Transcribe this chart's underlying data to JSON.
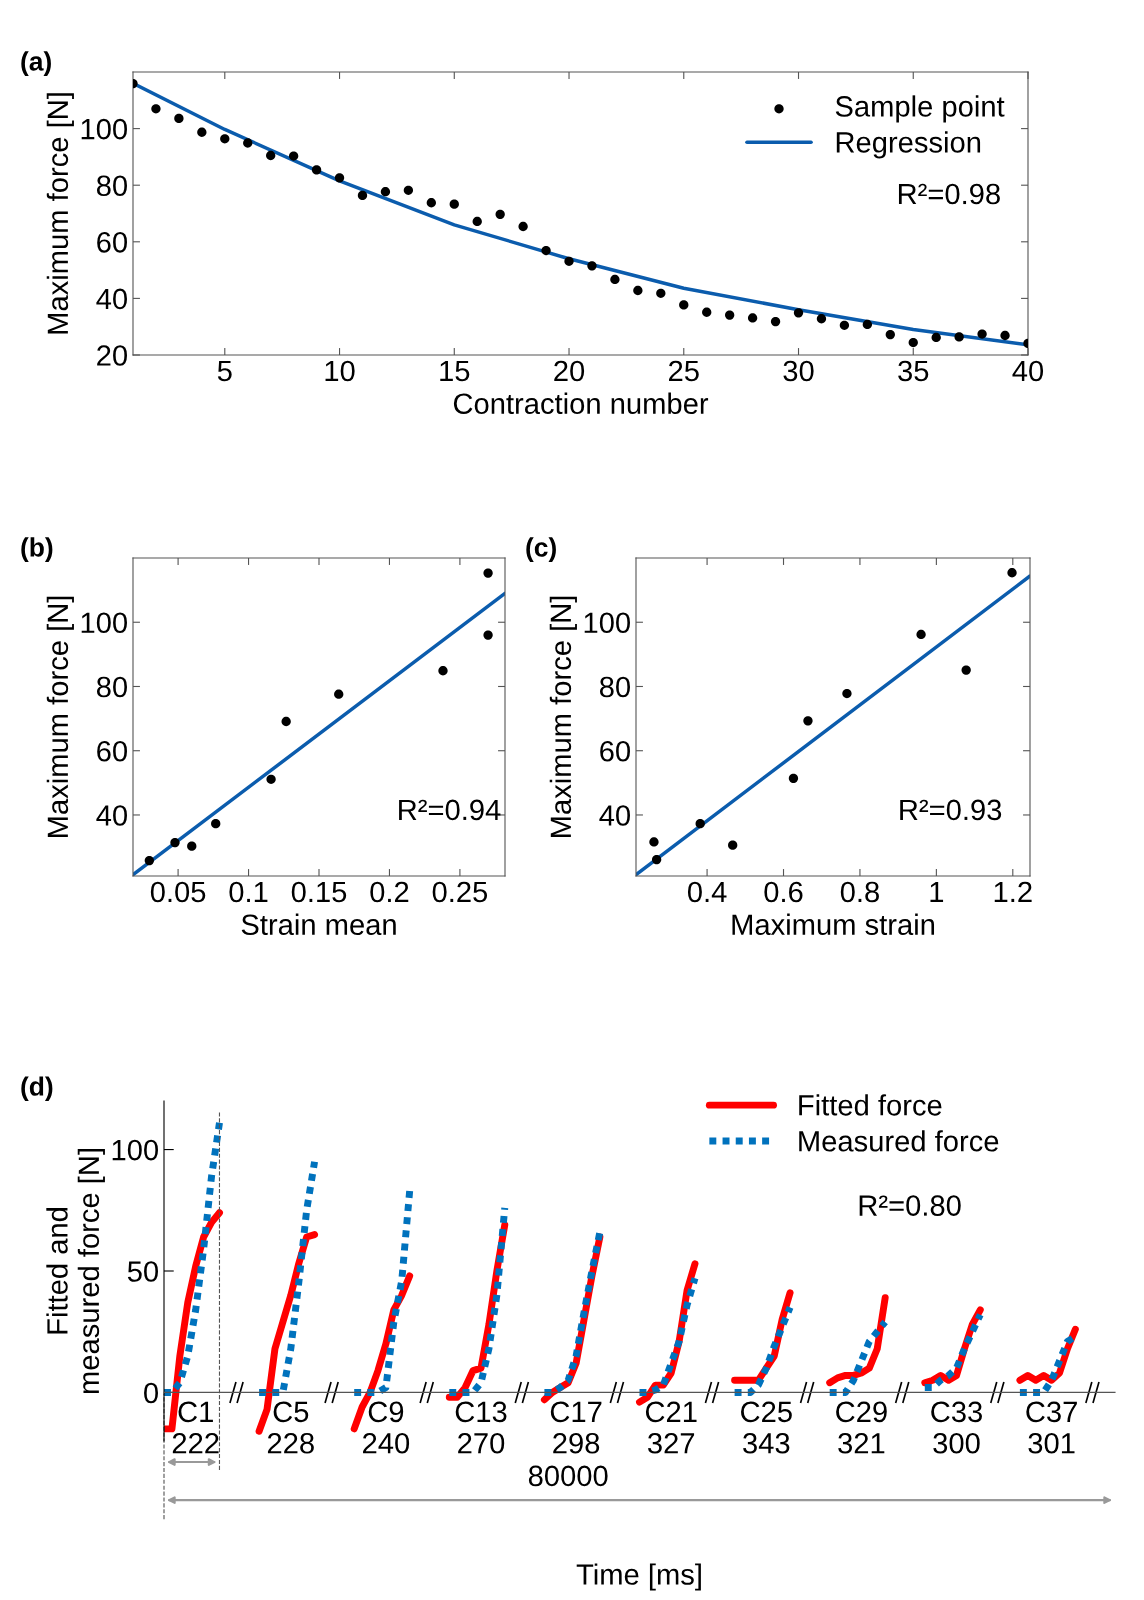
{
  "chart_data": [
    {
      "type": "scatter",
      "title": "(a)",
      "xlabel": "Contraction number",
      "ylabel": "Maximum force [N]",
      "xlim": [
        1,
        40
      ],
      "xticks": [
        5,
        10,
        15,
        20,
        25,
        30,
        35,
        40
      ],
      "ylim": [
        20,
        120
      ],
      "yticks": [
        20,
        40,
        60,
        80,
        100
      ],
      "grid": false,
      "legend": "top right",
      "annotations": [
        "R²=0.98"
      ],
      "series": [
        {
          "name": "Sample point",
          "marker": "circle",
          "color": "#000000",
          "x": [
            1,
            2,
            3,
            4,
            5,
            6,
            7,
            8,
            9,
            10,
            11,
            12,
            13,
            14,
            15,
            16,
            17,
            18,
            19,
            20,
            21,
            22,
            23,
            24,
            25,
            26,
            27,
            28,
            29,
            30,
            31,
            32,
            33,
            34,
            35,
            36,
            37,
            38,
            39,
            40
          ],
          "values": [
            115.9,
            107,
            103.6,
            98.7,
            96.4,
            94.9,
            90.5,
            90.3,
            85.4,
            82.6,
            76.4,
            77.7,
            78.2,
            73.8,
            73.3,
            67.2,
            69.7,
            65.4,
            56.9,
            53.1,
            51.5,
            46.7,
            42.8,
            41.8,
            37.7,
            35.1,
            34.1,
            33.1,
            31.8,
            34.9,
            32.8,
            30.5,
            30.8,
            27.2,
            24.4,
            26.2,
            26.4,
            27.4,
            26.9,
            24.1
          ]
        },
        {
          "name": "Regression",
          "type": "line",
          "marker": "none",
          "line_style": "solid",
          "color": "#0b5cad",
          "x": [
            1,
            5,
            10,
            15,
            20,
            25,
            30,
            35,
            40
          ],
          "values": [
            116,
            99.7,
            81.5,
            66,
            54,
            43.6,
            36,
            29,
            23.6
          ]
        }
      ]
    },
    {
      "type": "scatter",
      "title": "(b)",
      "xlabel": "Strain mean",
      "ylabel": "Maximum force [N]",
      "xlim": [
        0.018,
        0.282
      ],
      "xticks": [
        0.05,
        0.1,
        0.15,
        0.2,
        0.25
      ],
      "ylim": [
        21,
        120
      ],
      "yticks": [
        40,
        60,
        80,
        100
      ],
      "grid": false,
      "annotations": [
        "R²=0.94"
      ],
      "series": [
        {
          "marker": "circle",
          "color": "#000000",
          "x": [
            0.0296,
            0.0478,
            0.0597,
            0.0767,
            0.116,
            0.1267,
            0.164,
            0.238,
            0.27,
            0.27
          ],
          "values": [
            25.8,
            31.4,
            30.3,
            37.3,
            51.1,
            69.1,
            77.6,
            84.9,
            96.0,
            115.3
          ]
        },
        {
          "type": "line",
          "marker": "none",
          "line_style": "solid",
          "color": "#0b5cad",
          "x": [
            0.018,
            0.282
          ],
          "values": [
            21.4,
            109
          ]
        }
      ]
    },
    {
      "type": "scatter",
      "title": "(c)",
      "xlabel": "Maximum strain",
      "ylabel": "Maximum force [N]",
      "xlim": [
        0.214,
        1.245
      ],
      "xticks": [
        0.4,
        0.6,
        0.8,
        1,
        1.2
      ],
      "ylim": [
        21,
        120
      ],
      "yticks": [
        40,
        60,
        80,
        100
      ],
      "grid": false,
      "annotations": [
        "R²=0.93"
      ],
      "series": [
        {
          "marker": "circle",
          "color": "#000000",
          "x": [
            0.261,
            0.268,
            0.382,
            0.467,
            0.626,
            0.664,
            0.766,
            0.96,
            1.078,
            1.198
          ],
          "values": [
            31.6,
            26.1,
            37.3,
            30.6,
            51.4,
            69.3,
            77.8,
            96.2,
            85.1,
            115.4
          ]
        },
        {
          "type": "line",
          "marker": "none",
          "line_style": "solid",
          "color": "#0b5cad",
          "x": [
            0.214,
            1.245
          ],
          "values": [
            21.4,
            114.4
          ]
        }
      ]
    },
    {
      "type": "line",
      "title": "(d)",
      "xlabel": "Time [ms]",
      "ylabel": "Fitted and\nmeasured force [N]",
      "ylim": [
        -20,
        120
      ],
      "yticks": [
        0,
        50,
        100
      ],
      "grid": false,
      "legend": "top right",
      "annotations": [
        "R²=0.80",
        "80000"
      ],
      "categories": [
        null,
        null,
        null,
        null,
        "C1\n222",
        null,
        null,
        null,
        null,
        null,
        null,
        null,
        null,
        null,
        null,
        null,
        "C5\n228",
        null,
        null,
        null,
        null,
        null,
        null,
        null,
        null,
        null,
        null,
        null,
        "C9\n240",
        null,
        null,
        null,
        null,
        null,
        null,
        null,
        null,
        null,
        null,
        null,
        "C13\n270",
        null,
        null,
        null,
        null,
        null,
        null,
        null,
        null,
        null,
        null,
        null,
        "C17\n298",
        null,
        null,
        null,
        null,
        null,
        null,
        null,
        null,
        null,
        null,
        null,
        "C21\n327",
        null,
        null,
        null,
        null,
        null,
        null,
        null,
        null,
        null,
        null,
        null,
        "C25\n343",
        null,
        null,
        null,
        null,
        null,
        null,
        null,
        null,
        null,
        null,
        null,
        "C29\n321",
        null,
        null,
        null,
        null,
        null,
        null,
        null,
        null,
        null,
        null,
        null,
        "C33\n300",
        null,
        null,
        null,
        null,
        null,
        null,
        null,
        null,
        null,
        null,
        null,
        "C37\n301",
        null,
        null,
        null,
        null,
        null,
        null,
        null
      ],
      "series": [
        {
          "name": "Fitted force",
          "marker": "none",
          "line_style": "solid",
          "color": "#ff0000",
          "values": [
            -15,
            -15,
            15,
            37,
            52,
            64,
            70,
            74,
            null,
            null,
            null,
            null,
            -16,
            -7,
            18,
            29,
            40,
            53,
            64,
            65,
            null,
            null,
            null,
            null,
            -15,
            -6,
            0,
            9,
            20,
            34,
            40,
            48,
            null,
            null,
            null,
            null,
            -2,
            -2,
            2,
            9,
            10,
            28,
            50,
            69,
            null,
            null,
            null,
            null,
            -3,
            0,
            2,
            4,
            12,
            30,
            48,
            64,
            null,
            null,
            null,
            null,
            -4,
            -2,
            3,
            3,
            8,
            21,
            42,
            53,
            null,
            null,
            null,
            null,
            5,
            5,
            5,
            5,
            10,
            15,
            30,
            41,
            null,
            null,
            null,
            null,
            4,
            6,
            7,
            7,
            8,
            10,
            18,
            39,
            null,
            null,
            null,
            null,
            4,
            5,
            7,
            5,
            7,
            18,
            28,
            34,
            null,
            null,
            null,
            null,
            5,
            7,
            5,
            7,
            5,
            8,
            18,
            26,
            null,
            null,
            null,
            null
          ]
        },
        {
          "name": "Measured force",
          "marker": "none",
          "line_style": "dotted",
          "color": "#0072bd",
          "values": [
            0,
            0,
            4,
            15,
            34,
            59,
            89,
            111,
            null,
            null,
            null,
            null,
            0,
            0,
            0,
            0,
            18,
            45,
            75,
            95,
            null,
            null,
            null,
            null,
            0,
            0,
            0,
            0,
            2,
            29,
            46,
            83,
            null,
            null,
            null,
            null,
            0,
            0,
            0,
            0,
            4,
            18,
            40,
            76,
            null,
            null,
            null,
            null,
            0,
            0,
            2,
            5,
            15,
            33,
            50,
            66,
            null,
            null,
            null,
            null,
            0,
            0,
            1,
            3,
            12,
            21,
            36,
            47,
            null,
            null,
            null,
            null,
            0,
            0,
            0,
            3,
            10,
            19,
            27,
            35,
            null,
            null,
            null,
            null,
            0,
            0,
            0,
            5,
            13,
            21,
            25,
            29,
            null,
            null,
            null,
            null,
            2,
            2,
            5,
            7,
            10,
            18,
            25,
            32,
            null,
            null,
            null,
            null,
            0,
            0,
            0,
            0,
            5,
            13,
            21,
            23,
            null,
            null,
            null,
            null
          ]
        }
      ]
    }
  ]
}
